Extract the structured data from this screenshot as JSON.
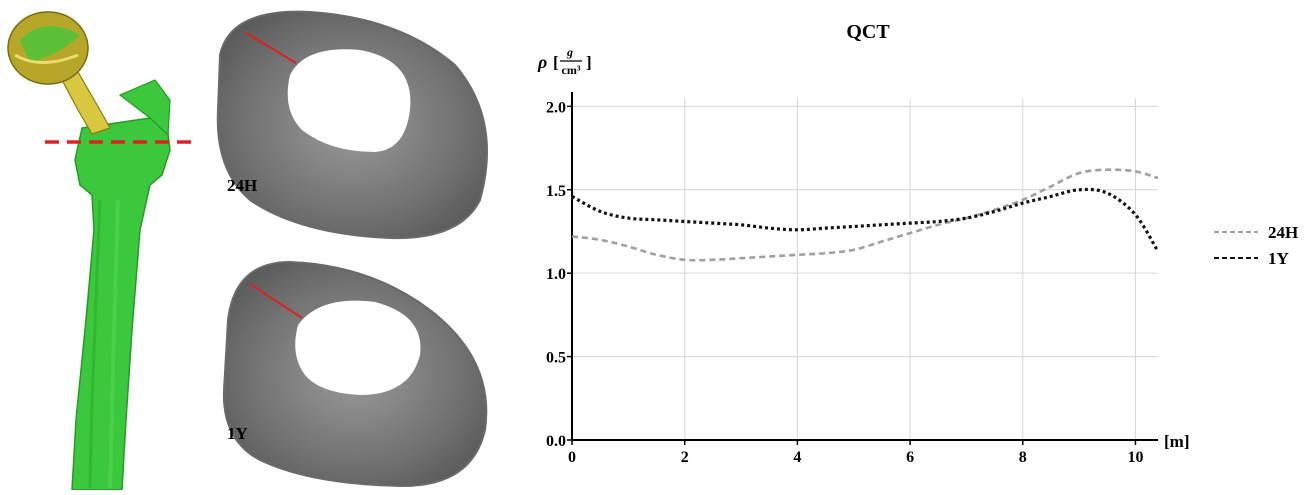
{
  "left_panel": {
    "section_labels": [
      "24H",
      "1Y"
    ],
    "colors": {
      "bone": "#3cc83c",
      "implant": "#b8a628",
      "cut_line": "#e02020",
      "section_mark": "#e02020"
    }
  },
  "chart_data": {
    "type": "line",
    "title": "QCT",
    "ylabel": "ρ [g/cm³]",
    "ylabel_parts": {
      "symbol": "ρ",
      "num": "g",
      "den": "cm³"
    },
    "xlabel": "[m]",
    "xlim": [
      0,
      10.4
    ],
    "ylim": [
      0,
      2.05
    ],
    "xticks": [
      0,
      2,
      4,
      6,
      8,
      10
    ],
    "yticks": [
      0.0,
      0.5,
      1.0,
      1.5,
      2.0
    ],
    "ytick_labels": [
      "0.0",
      "0.5",
      "1.0",
      "1.5",
      "2.0"
    ],
    "xtick_labels": [
      "0",
      "2",
      "4",
      "6",
      "8",
      "10"
    ],
    "grid": true,
    "legend_position": "right",
    "series": [
      {
        "name": "24H",
        "color": "#a0a0a0",
        "dash": "dashed",
        "x": [
          0,
          0.5,
          1,
          1.5,
          2,
          2.5,
          3,
          3.5,
          4,
          4.5,
          5,
          5.5,
          6,
          6.5,
          7,
          7.5,
          8,
          8.5,
          9,
          9.5,
          10,
          10.4
        ],
        "y": [
          1.22,
          1.2,
          1.16,
          1.11,
          1.08,
          1.08,
          1.09,
          1.1,
          1.11,
          1.12,
          1.14,
          1.19,
          1.24,
          1.29,
          1.33,
          1.38,
          1.44,
          1.52,
          1.6,
          1.62,
          1.61,
          1.57
        ]
      },
      {
        "name": "1Y",
        "color": "#111111",
        "dash": "dotted",
        "x": [
          0,
          0.5,
          1,
          1.5,
          2,
          2.5,
          3,
          3.5,
          4,
          4.5,
          5,
          5.5,
          6,
          6.5,
          7,
          7.5,
          8,
          8.5,
          9,
          9.5,
          10,
          10.4
        ],
        "y": [
          1.46,
          1.37,
          1.33,
          1.32,
          1.31,
          1.3,
          1.29,
          1.27,
          1.26,
          1.27,
          1.28,
          1.29,
          1.3,
          1.31,
          1.33,
          1.37,
          1.42,
          1.46,
          1.5,
          1.48,
          1.35,
          1.13
        ]
      }
    ]
  }
}
